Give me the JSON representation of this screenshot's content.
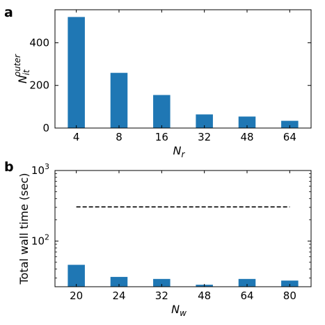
{
  "chart_data": [
    {
      "panel_label": "a",
      "type": "bar",
      "categories": [
        "4",
        "8",
        "16",
        "32",
        "48",
        "64"
      ],
      "values": [
        521,
        259,
        155,
        64,
        54,
        34
      ],
      "xlabel_main": "N",
      "xlabel_sub": "r",
      "ylabel_main": "N",
      "ylabel_sub": "it",
      "ylabel_sup": "outer",
      "yscale": "linear",
      "ylim": [
        0,
        555
      ],
      "yticks": [
        0,
        200,
        400
      ],
      "bar_color": "#1f77b4",
      "grid": false
    },
    {
      "panel_label": "b",
      "type": "bar",
      "categories": [
        "20",
        "24",
        "32",
        "48",
        "64",
        "80"
      ],
      "values": [
        46,
        31,
        29,
        24,
        29,
        27.5
      ],
      "reference_line": {
        "value": 305,
        "style": "dashed",
        "color": "#000000"
      },
      "xlabel_main": "N",
      "xlabel_sub": "w",
      "ylabel": "Total wall time (sec)",
      "yscale": "log",
      "ylim": [
        22.5,
        1000
      ],
      "yticks": [
        {
          "value": 100,
          "base": "10",
          "exp": "2"
        },
        {
          "value": 1000,
          "base": "10",
          "exp": "3"
        }
      ],
      "bar_color": "#1f77b4",
      "grid": false
    }
  ]
}
